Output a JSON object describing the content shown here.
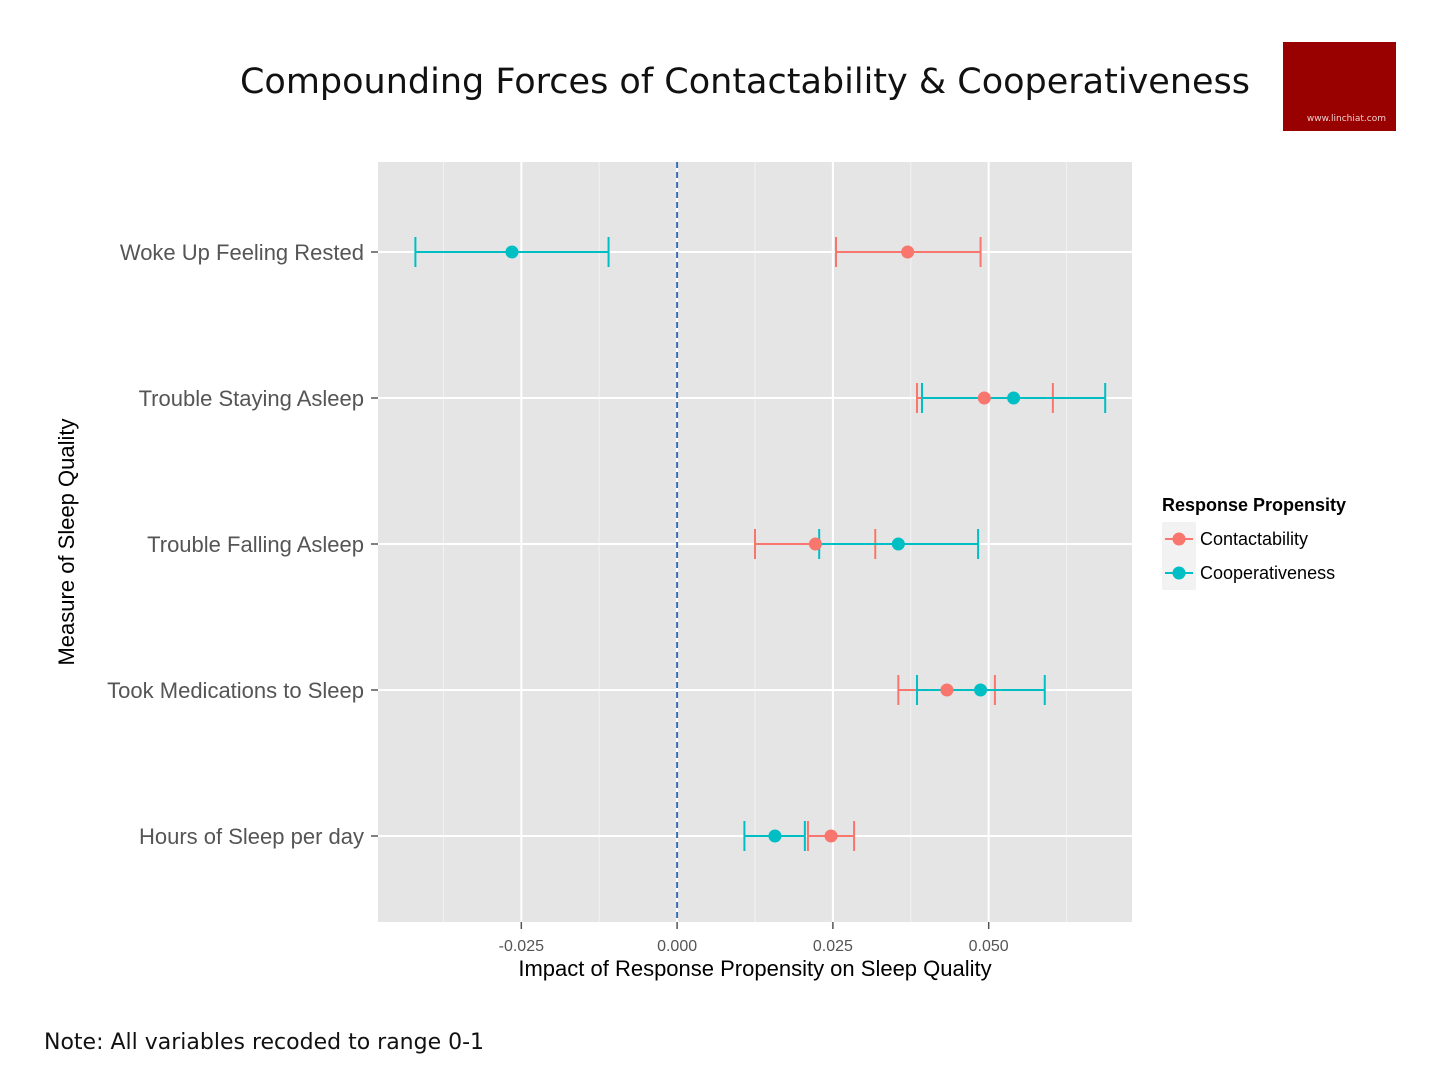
{
  "title": "Compounding Forces of Contactability & Cooperativeness",
  "logo_text": "www.linchiat.com",
  "note": "Note: All variables recoded to range 0-1",
  "chart_data": {
    "type": "scatter",
    "subtype": "dot-and-error-bar",
    "xlabel": "Impact of Response Propensity on Sleep Quality",
    "ylabel": "Measure of Sleep Quality",
    "xlim": [
      -0.048,
      0.073
    ],
    "x_ticks": [
      -0.025,
      0.0,
      0.025,
      0.05
    ],
    "x_tick_labels": [
      "-0.025",
      "0.000",
      "0.025",
      "0.050"
    ],
    "categories": [
      "Woke Up Feeling Rested",
      "Trouble Staying Asleep",
      "Trouble Falling Asleep",
      "Took Medications to Sleep",
      "Hours of Sleep per day"
    ],
    "reference_line": {
      "x": 0.0,
      "style": "dashed",
      "color": "#3a6db5"
    },
    "grid": true,
    "legend": {
      "title": "Response Propensity",
      "position": "right"
    },
    "series": [
      {
        "name": "Contactability",
        "color": "#F8766D",
        "values": [
          0.037,
          0.0493,
          0.0222,
          0.0433,
          0.0247
        ],
        "lower": [
          0.0255,
          0.0385,
          0.0125,
          0.0355,
          0.021
        ],
        "upper": [
          0.0487,
          0.0603,
          0.0318,
          0.051,
          0.0284
        ]
      },
      {
        "name": "Cooperativeness",
        "color": "#00BFC4",
        "values": [
          -0.0265,
          0.054,
          0.0355,
          0.0487,
          0.0157
        ],
        "lower": [
          -0.042,
          0.0393,
          0.0228,
          0.0385,
          0.0108
        ],
        "upper": [
          -0.011,
          0.0687,
          0.0483,
          0.059,
          0.0205
        ]
      }
    ]
  }
}
